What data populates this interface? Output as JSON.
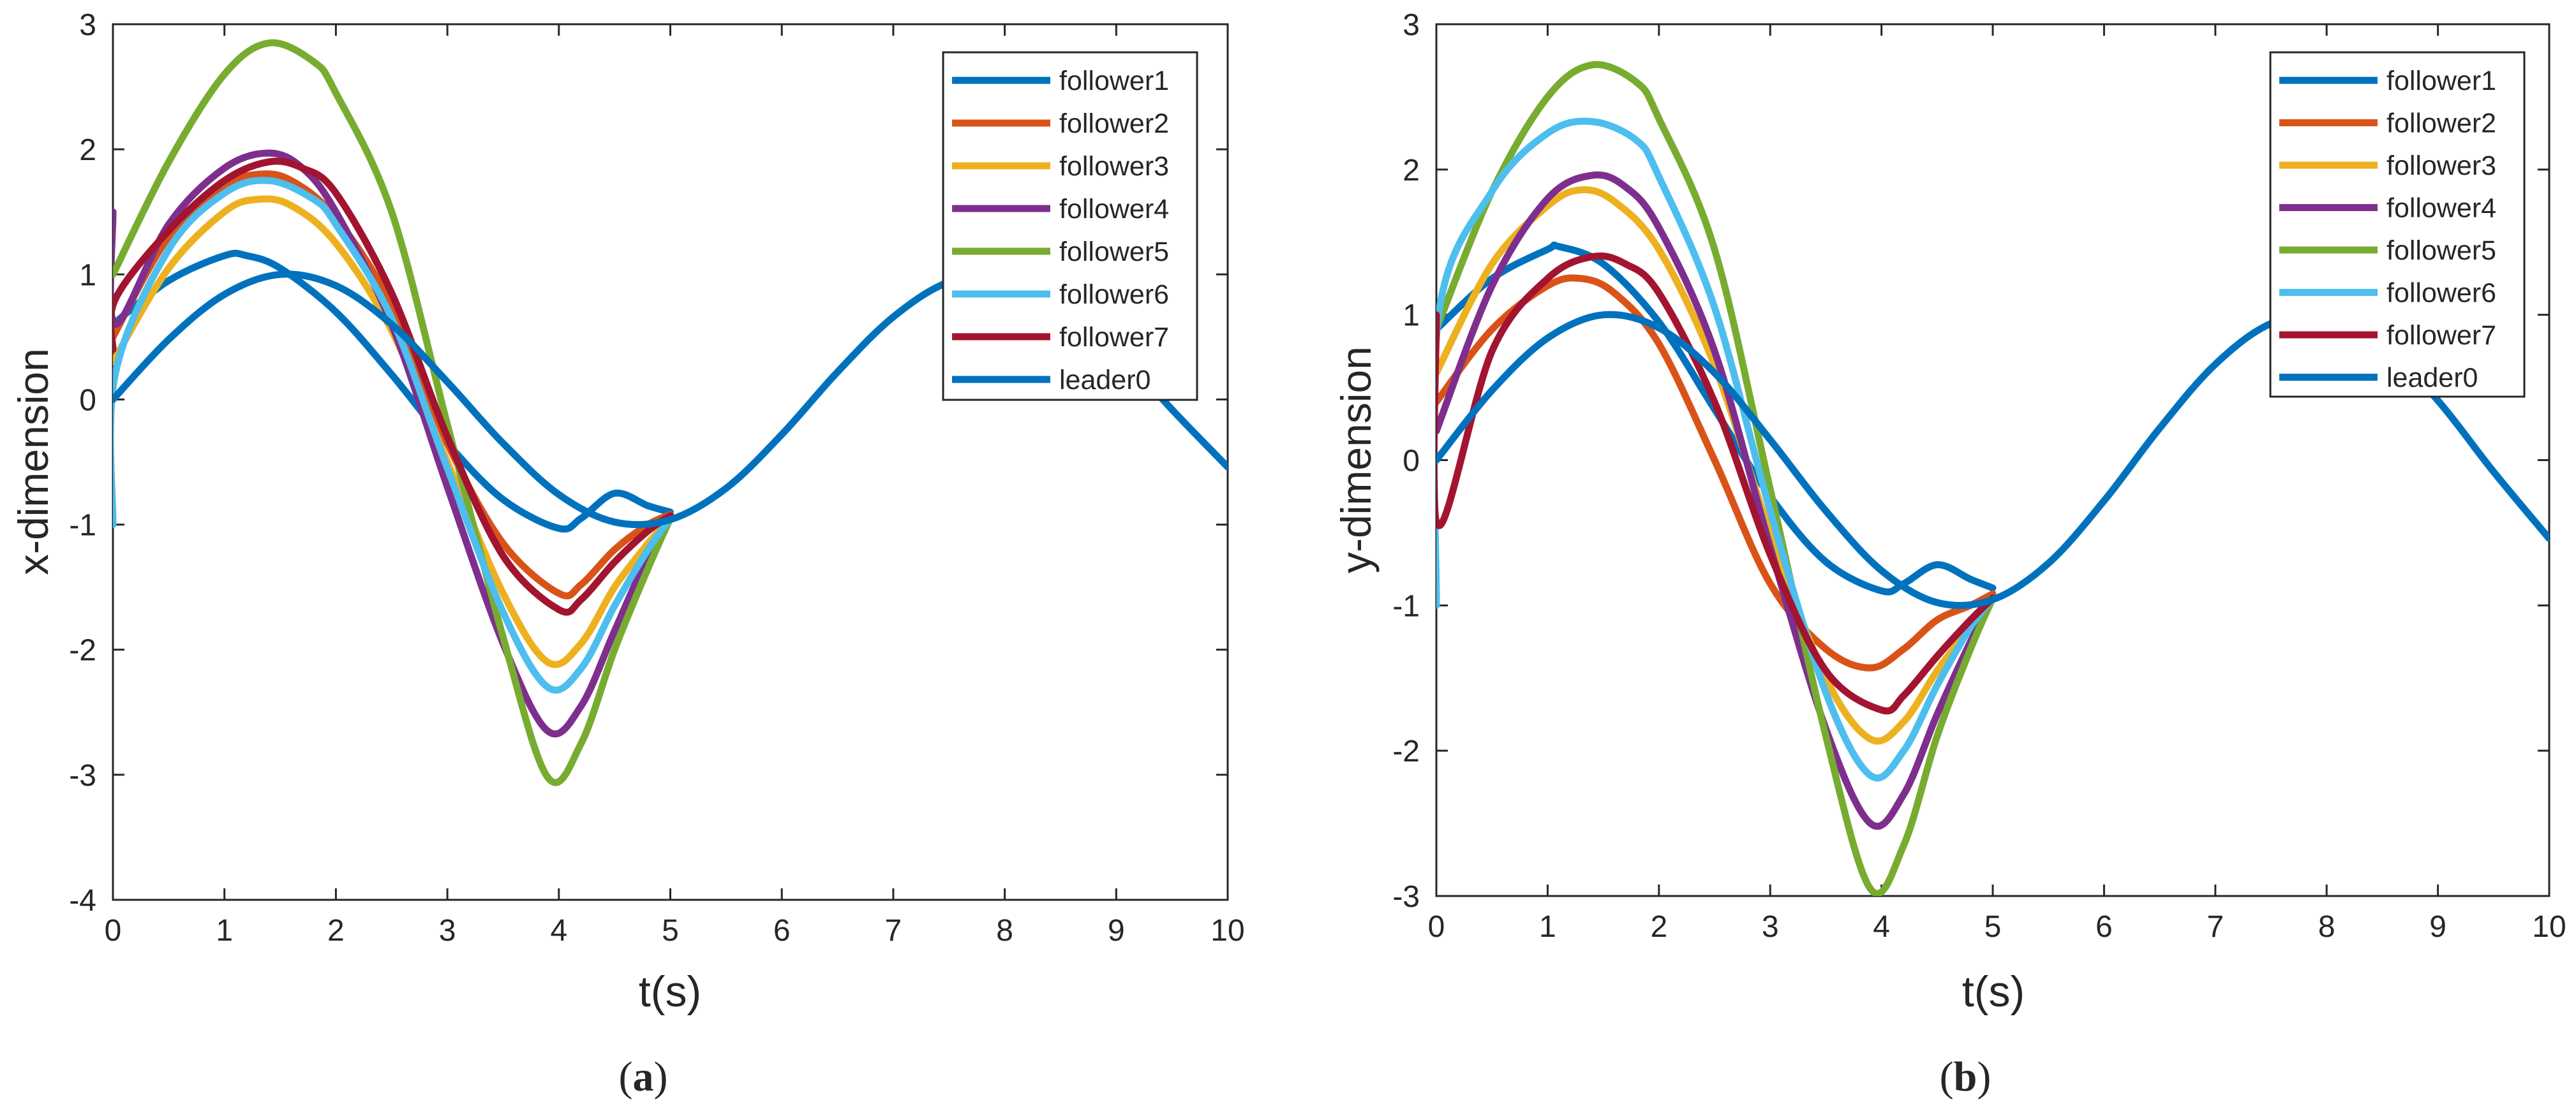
{
  "figure": {
    "panels": [
      {
        "open": "(",
        "letter": "a",
        "close": ")"
      },
      {
        "open": "(",
        "letter": "b",
        "close": ")"
      }
    ]
  },
  "series_styles": [
    {
      "name": "follower1",
      "color": "#0072BD"
    },
    {
      "name": "follower2",
      "color": "#D95319"
    },
    {
      "name": "follower3",
      "color": "#EDB120"
    },
    {
      "name": "follower4",
      "color": "#7E2F8E"
    },
    {
      "name": "follower5",
      "color": "#77AC30"
    },
    {
      "name": "follower6",
      "color": "#4DBEEE"
    },
    {
      "name": "follower7",
      "color": "#A2142F"
    },
    {
      "name": "leader0",
      "color": "#0072BD"
    }
  ],
  "chart_data": [
    {
      "type": "line",
      "panel": "a",
      "title": "",
      "xlabel": "t(s)",
      "ylabel": "x-dimension",
      "xlim": [
        0,
        10
      ],
      "ylim": [
        -4,
        3
      ],
      "xticks": [
        "0",
        "1",
        "2",
        "3",
        "4",
        "5",
        "6",
        "7",
        "8",
        "9",
        "10"
      ],
      "yticks": [
        "-4",
        "-3",
        "-2",
        "-1",
        "0",
        "1",
        "2",
        "3"
      ],
      "legend": "top-right",
      "grid": false,
      "series": [
        {
          "name": "follower1",
          "x": [
            0,
            0.5,
            1,
            1.2,
            1.5,
            2,
            2.5,
            3,
            3.5,
            4,
            4.2,
            4.5,
            4.8,
            5
          ],
          "y": [
            0.6,
            0.95,
            1.15,
            1.15,
            1.05,
            0.7,
            0.2,
            -0.35,
            -0.8,
            -1.03,
            -0.95,
            -0.75,
            -0.85,
            -0.9
          ]
        },
        {
          "name": "follower2",
          "x": [
            0,
            0.5,
            1,
            1.3,
            1.6,
            2,
            2.5,
            3,
            3.5,
            4,
            4.2,
            4.5,
            4.8,
            5
          ],
          "y": [
            0.5,
            1.3,
            1.7,
            1.8,
            1.75,
            1.45,
            0.75,
            -0.35,
            -1.15,
            -1.55,
            -1.48,
            -1.2,
            -1.0,
            -0.92
          ]
        },
        {
          "name": "follower3",
          "x": [
            0,
            0.5,
            1,
            1.3,
            1.6,
            2,
            2.5,
            3,
            3.5,
            3.9,
            4.2,
            4.5,
            4.8,
            5
          ],
          "y": [
            0.3,
            1.05,
            1.5,
            1.6,
            1.55,
            1.25,
            0.55,
            -0.5,
            -1.55,
            -2.1,
            -1.95,
            -1.5,
            -1.15,
            -0.95
          ]
        },
        {
          "name": "follower4",
          "x": [
            0,
            0.02,
            0.5,
            1,
            1.4,
            1.7,
            2,
            2.5,
            3,
            3.5,
            3.9,
            4.2,
            4.5,
            4.8,
            5
          ],
          "y": [
            1.5,
            0.6,
            1.4,
            1.85,
            1.97,
            1.85,
            1.5,
            0.6,
            -0.7,
            -1.95,
            -2.65,
            -2.45,
            -1.85,
            -1.25,
            -0.95
          ]
        },
        {
          "name": "follower5",
          "x": [
            0,
            0.5,
            1,
            1.4,
            1.8,
            2,
            2.5,
            3,
            3.5,
            3.9,
            4.2,
            4.5,
            4.8,
            5
          ],
          "y": [
            1.0,
            1.9,
            2.6,
            2.85,
            2.7,
            2.45,
            1.5,
            -0.2,
            -1.9,
            -3.02,
            -2.75,
            -2.0,
            -1.35,
            -0.95
          ]
        },
        {
          "name": "follower6",
          "x": [
            0,
            0.02,
            0.5,
            1,
            1.4,
            1.8,
            2,
            2.5,
            3,
            3.5,
            3.9,
            4.2,
            4.5,
            4.8,
            5
          ],
          "y": [
            -1.0,
            0.2,
            1.2,
            1.65,
            1.75,
            1.6,
            1.4,
            0.65,
            -0.55,
            -1.7,
            -2.3,
            -2.15,
            -1.65,
            -1.2,
            -0.95
          ]
        },
        {
          "name": "follower7",
          "x": [
            0,
            0.02,
            0.5,
            1,
            1.4,
            1.7,
            2,
            2.5,
            3,
            3.5,
            4,
            4.2,
            4.5,
            4.8,
            5
          ],
          "y": [
            0.4,
            0.8,
            1.35,
            1.75,
            1.9,
            1.85,
            1.65,
            0.85,
            -0.3,
            -1.25,
            -1.68,
            -1.6,
            -1.3,
            -1.05,
            -0.93
          ]
        },
        {
          "name": "leader0",
          "x": [
            0,
            0.5,
            1,
            1.5,
            2,
            2.5,
            3,
            3.5,
            4,
            4.5,
            5,
            5.5,
            6,
            6.5,
            7,
            7.5,
            8,
            8.5,
            9,
            9.5,
            10
          ],
          "y": [
            0.0,
            0.48,
            0.84,
            1.0,
            0.91,
            0.6,
            0.14,
            -0.35,
            -0.76,
            -0.98,
            -0.96,
            -0.71,
            -0.28,
            0.22,
            0.66,
            0.94,
            0.99,
            0.8,
            0.41,
            -0.08,
            -0.54
          ]
        }
      ]
    },
    {
      "type": "line",
      "panel": "b",
      "title": "",
      "xlabel": "t(s)",
      "ylabel": "y-dimension",
      "xlim": [
        0,
        10
      ],
      "ylim": [
        -3,
        3
      ],
      "xticks": [
        "0",
        "1",
        "2",
        "3",
        "4",
        "5",
        "6",
        "7",
        "8",
        "9",
        "10"
      ],
      "yticks": [
        "-3",
        "-2",
        "-1",
        "0",
        "1",
        "2",
        "3"
      ],
      "legend": "top-right",
      "grid": false,
      "series": [
        {
          "name": "follower1",
          "x": [
            0,
            0.5,
            1,
            1.1,
            1.5,
            2,
            2.5,
            3,
            3.5,
            4,
            4.2,
            4.5,
            4.8,
            5
          ],
          "y": [
            0.9,
            1.25,
            1.45,
            1.47,
            1.35,
            0.95,
            0.35,
            -0.25,
            -0.7,
            -0.9,
            -0.85,
            -0.72,
            -0.82,
            -0.88
          ]
        },
        {
          "name": "follower2",
          "x": [
            0,
            0.5,
            1,
            1.3,
            1.6,
            2,
            2.5,
            3,
            3.5,
            3.9,
            4.2,
            4.5,
            4.8,
            5
          ],
          "y": [
            0.4,
            0.9,
            1.2,
            1.25,
            1.15,
            0.8,
            0.0,
            -0.85,
            -1.3,
            -1.43,
            -1.3,
            -1.1,
            -1.0,
            -0.92
          ]
        },
        {
          "name": "follower3",
          "x": [
            0,
            0.5,
            1,
            1.3,
            1.6,
            2,
            2.5,
            3,
            3.5,
            3.9,
            4.2,
            4.5,
            4.8,
            5
          ],
          "y": [
            0.6,
            1.35,
            1.75,
            1.86,
            1.78,
            1.45,
            0.65,
            -0.5,
            -1.5,
            -1.92,
            -1.8,
            -1.45,
            -1.15,
            -0.95
          ]
        },
        {
          "name": "follower4",
          "x": [
            0,
            0.5,
            1,
            1.4,
            1.7,
            2,
            2.5,
            3,
            3.5,
            3.9,
            4.2,
            4.5,
            4.8,
            5
          ],
          "y": [
            0.2,
            1.2,
            1.8,
            1.96,
            1.88,
            1.6,
            0.75,
            -0.6,
            -1.85,
            -2.5,
            -2.3,
            -1.75,
            -1.25,
            -0.95
          ]
        },
        {
          "name": "follower5",
          "x": [
            0,
            0.5,
            1,
            1.4,
            1.8,
            2,
            2.5,
            3,
            3.5,
            3.9,
            4.2,
            4.5,
            4.8,
            5
          ],
          "y": [
            0.9,
            1.85,
            2.5,
            2.72,
            2.6,
            2.35,
            1.45,
            -0.2,
            -1.9,
            -2.95,
            -2.65,
            -1.9,
            -1.3,
            -0.95
          ]
        },
        {
          "name": "follower6",
          "x": [
            0,
            0.02,
            0.5,
            1,
            1.4,
            1.8,
            2,
            2.5,
            3,
            3.5,
            3.9,
            4.2,
            4.5,
            4.8,
            5
          ],
          "y": [
            -1.0,
            1.0,
            1.85,
            2.25,
            2.33,
            2.2,
            1.95,
            1.05,
            -0.35,
            -1.6,
            -2.17,
            -2.0,
            -1.55,
            -1.15,
            -0.95
          ]
        },
        {
          "name": "follower7",
          "x": [
            0,
            0.02,
            0.5,
            1,
            1.4,
            1.7,
            2,
            2.5,
            3,
            3.5,
            4,
            4.2,
            4.5,
            4.8,
            5
          ],
          "y": [
            1.0,
            -0.45,
            0.75,
            1.25,
            1.4,
            1.35,
            1.15,
            0.4,
            -0.65,
            -1.45,
            -1.72,
            -1.62,
            -1.35,
            -1.1,
            -0.95
          ]
        },
        {
          "name": "leader0",
          "x": [
            0,
            0.5,
            1,
            1.5,
            2,
            2.5,
            3,
            3.5,
            4,
            4.5,
            5,
            5.5,
            6,
            6.5,
            7,
            7.5,
            8,
            8.5,
            9,
            9.5,
            10
          ],
          "y": [
            0.0,
            0.48,
            0.84,
            1.0,
            0.91,
            0.6,
            0.14,
            -0.35,
            -0.76,
            -0.98,
            -0.96,
            -0.71,
            -0.28,
            0.22,
            0.66,
            0.94,
            0.99,
            0.8,
            0.41,
            -0.08,
            -0.54
          ]
        }
      ]
    }
  ]
}
